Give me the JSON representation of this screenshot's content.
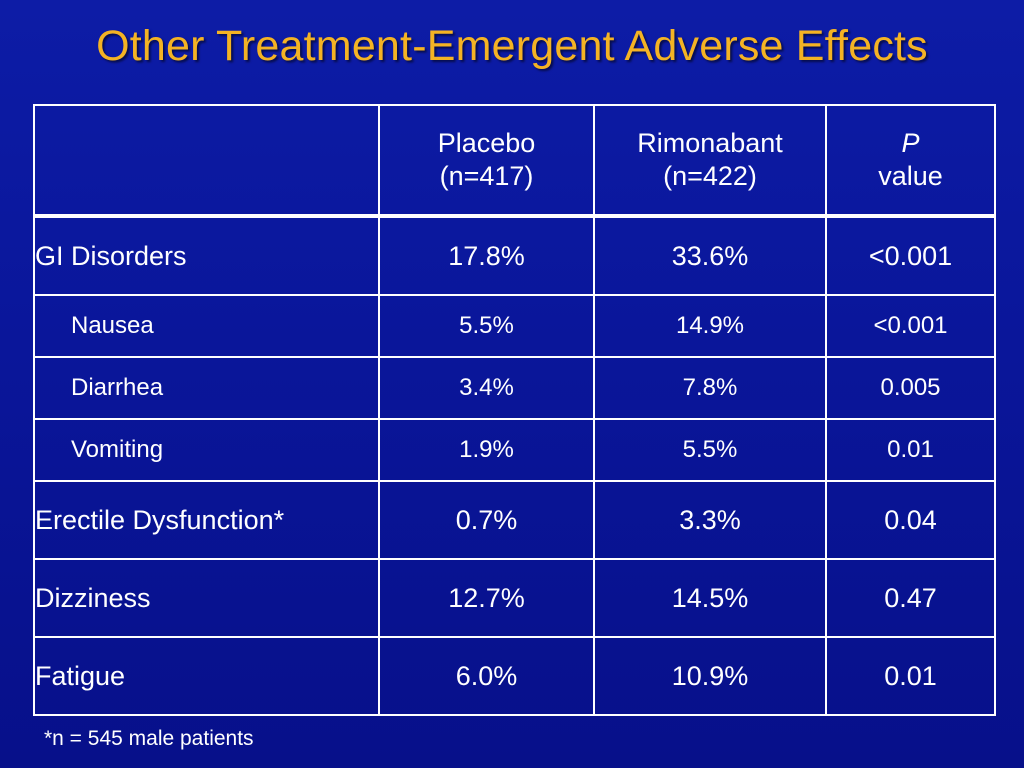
{
  "title": "Other Treatment-Emergent Adverse Effects",
  "table": {
    "columns": [
      {
        "line1": "",
        "line2": ""
      },
      {
        "line1": "Placebo",
        "line2": "(n=417)"
      },
      {
        "line1": "Rimonabant",
        "line2": "(n=422)"
      },
      {
        "line1": "P",
        "line2": "value"
      }
    ],
    "rows": [
      {
        "label": "GI Disorders",
        "placebo": "17.8%",
        "rimonabant": "33.6%",
        "p": "<0.001"
      },
      {
        "label": "Nausea",
        "placebo": "5.5%",
        "rimonabant": "14.9%",
        "p": "<0.001"
      },
      {
        "label": "Diarrhea",
        "placebo": "3.4%",
        "rimonabant": "7.8%",
        "p": "0.005"
      },
      {
        "label": "Vomiting",
        "placebo": "1.9%",
        "rimonabant": "5.5%",
        "p": "0.01"
      },
      {
        "label": "Erectile Dysfunction*",
        "placebo": "0.7%",
        "rimonabant": "3.3%",
        "p": "0.04"
      },
      {
        "label": "Dizziness",
        "placebo": "12.7%",
        "rimonabant": "14.5%",
        "p": "0.47"
      },
      {
        "label": "Fatigue",
        "placebo": "6.0%",
        "rimonabant": "10.9%",
        "p": "0.01"
      }
    ]
  },
  "footnote": "*n = 545 male patients",
  "colors": {
    "background": "#0a169a",
    "title": "#f4b324",
    "text": "#ffffff",
    "grid": "#ffffff"
  }
}
